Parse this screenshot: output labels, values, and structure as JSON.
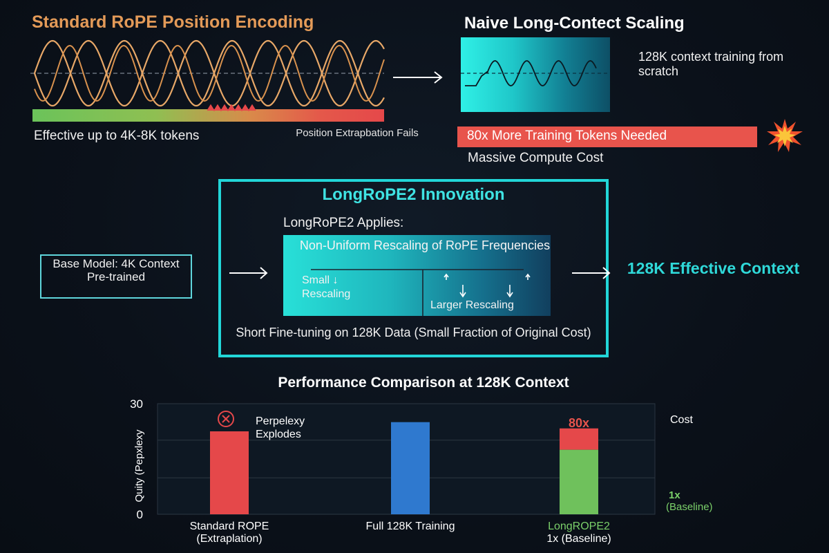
{
  "top_left": {
    "title": "Standard RoPE Position Encoding",
    "effective_label": "Effective up to 4K-8K tokens",
    "fail_label": "Position Extrapbation Fails"
  },
  "top_right": {
    "title": "Naive Long-Contect Scaling",
    "side_label": "128K context training from scratch",
    "warning": "80x More Training Tokens Needed",
    "cost_label": "Massive Compute Cost"
  },
  "innovation": {
    "title": "LongRoPE2 Innovation",
    "applies_label": "LongRoPE2 Applies:",
    "rescaling_title": "Non-Uniform Rescaling of RoPE Frequencies",
    "small_label": "Small ↓ Rescaling",
    "larger_label": "Larger Rescaling",
    "finetune_label": "Short Fine-tuning on 128K Data (Small Fraction of Original Cost)"
  },
  "base_model": {
    "label": "Base Model: 4K Context Pre-trained"
  },
  "result": {
    "label": "128K Effective Context"
  },
  "colors": {
    "accent": "#22d6d8",
    "warning": "#e8544c",
    "orange": "#e39a58",
    "green": "#6fc15c",
    "blue": "#2f79cf"
  },
  "chart_data": {
    "type": "bar",
    "title": "Performance Comparison at 128K Context",
    "ylabel": "Quity (Pepxlexy",
    "ylim": [
      0,
      30
    ],
    "y_ticks": [
      "30",
      "0"
    ],
    "categories": [
      "Standard ROPE (Extraplation)",
      "Full 128K Training",
      "LongROPE2 1x (Baseline)"
    ],
    "bars": [
      {
        "category": "Standard ROPE (Extraplation)",
        "value": 22.5,
        "color": "#e5484a"
      },
      {
        "category": "Full 128K Training",
        "value": 25.0,
        "color": "#2f79cf"
      },
      {
        "category": "LongROPE2 1x (Baseline)",
        "value": 17.5,
        "stack_top": 23.3,
        "color": "#6fc15c",
        "top_color": "#e5484a"
      }
    ],
    "annotations": {
      "explodes": "Perpelexy Explodes",
      "cost_header": "Cost",
      "cost_value": "80x",
      "baseline_value": "1x",
      "baseline_note": "(Baseline)"
    }
  }
}
